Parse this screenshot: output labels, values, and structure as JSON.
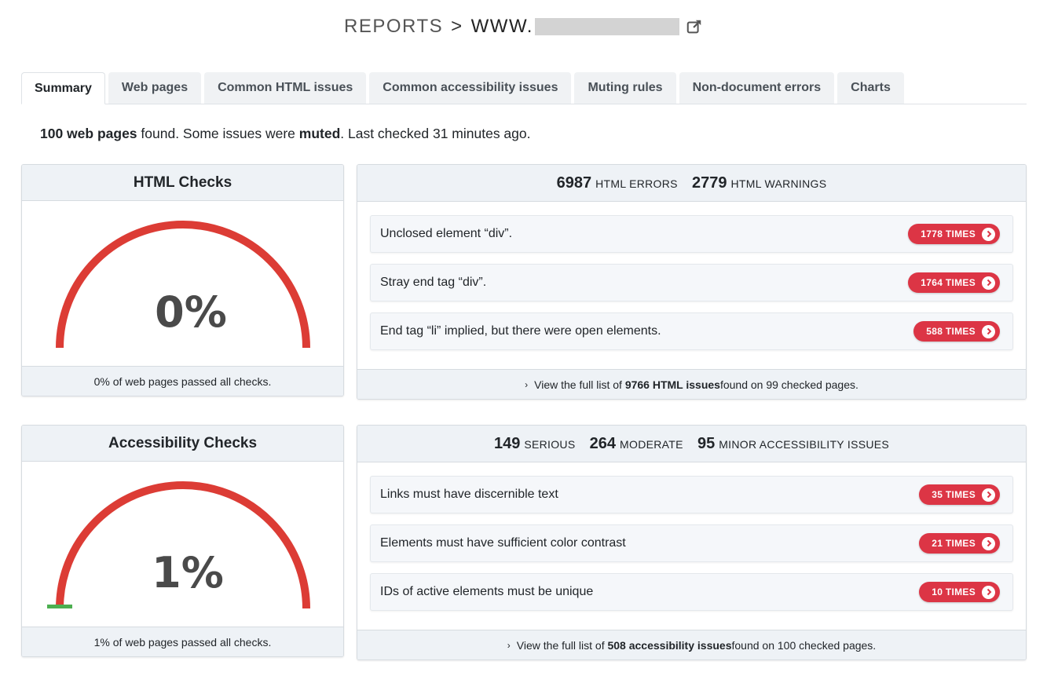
{
  "header": {
    "reports": "REPORTS",
    "separator": ">",
    "site_prefix": "WWW."
  },
  "tabs": [
    {
      "label": "Summary",
      "active": true
    },
    {
      "label": "Web pages"
    },
    {
      "label": "Common HTML issues"
    },
    {
      "label": "Common accessibility issues"
    },
    {
      "label": "Muting rules"
    },
    {
      "label": "Non-document errors"
    },
    {
      "label": "Charts"
    }
  ],
  "summary": {
    "pages_count": "100 web pages",
    "found": " found. Some issues were ",
    "muted": "muted",
    "last_checked": ". Last checked 31 minutes ago."
  },
  "html_checks": {
    "title": "HTML Checks",
    "percent": "0%",
    "percent_value": 0,
    "footer": "0% of web pages passed all checks."
  },
  "html_stats": {
    "errors_num": "6987",
    "errors_label": "HTML ERRORS",
    "warnings_num": "2779",
    "warnings_label": "HTML WARNINGS",
    "issues": [
      {
        "text": "Unclosed element “div”.",
        "badge": "1778 TIMES"
      },
      {
        "text": "Stray end tag “div”.",
        "badge": "1764 TIMES"
      },
      {
        "text": "End tag “li” implied, but there were open elements.",
        "badge": "588 TIMES"
      }
    ],
    "footer_pre": "View the full list of ",
    "footer_bold": "9766 HTML issues",
    "footer_post": " found on 99 checked pages."
  },
  "a11y_checks": {
    "title": "Accessibility Checks",
    "percent": "1%",
    "percent_value": 1,
    "footer": "1% of web pages passed all checks."
  },
  "a11y_stats": {
    "serious_num": "149",
    "serious_label": "SERIOUS",
    "moderate_num": "264",
    "moderate_label": "MODERATE",
    "minor_num": "95",
    "minor_label": "MINOR ACCESSIBILITY ISSUES",
    "issues": [
      {
        "text": "Links must have discernible text",
        "badge": "35 TIMES"
      },
      {
        "text": "Elements must have sufficient color contrast",
        "badge": "21 TIMES"
      },
      {
        "text": "IDs of active elements must be unique",
        "badge": "10 TIMES"
      }
    ],
    "footer_pre": "View the full list of ",
    "footer_bold": "508 accessibility issues",
    "footer_post": " found on 100 checked pages."
  },
  "colors": {
    "fail": "#dc3c35",
    "pass": "#4caf50",
    "badge": "#dc3545"
  }
}
